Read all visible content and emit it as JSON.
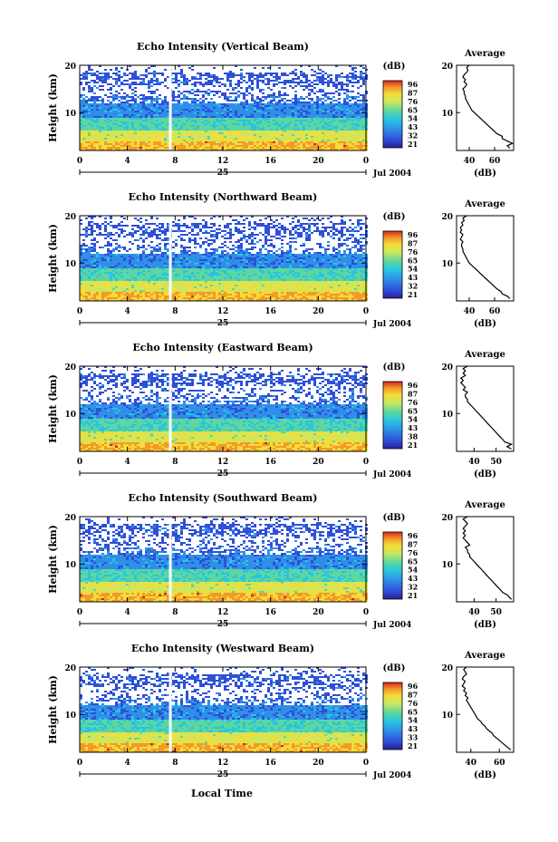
{
  "figure": {
    "xlabel_bottom": "Local Time",
    "colorbar_unit": "(dB)",
    "average_title": "Average",
    "average_xlabel": "(dB)",
    "date_label": "Jul 2004",
    "day_label": "25"
  },
  "chart_data": [
    {
      "type": "heatmap",
      "title": "Echo Intensity (Vertical Beam)",
      "ylabel": "Height (km)",
      "ylim": [
        2,
        20
      ],
      "yticks": [
        "20",
        "10"
      ],
      "xticks": [
        "0",
        "4",
        "8",
        "12",
        "16",
        "20",
        "0"
      ],
      "xlim": [
        0,
        24
      ],
      "colorbar_ticks": [
        "96",
        "87",
        "76",
        "65",
        "54",
        "43",
        "32",
        "21"
      ],
      "data_gap_at_hour": 7.6,
      "average": {
        "xticks": [
          "40",
          "60"
        ],
        "xlim": [
          30,
          75
        ],
        "yticks": [
          "20",
          "10"
        ],
        "profile": [
          [
            72,
            2.5
          ],
          [
            70,
            3
          ],
          [
            74,
            3.5
          ],
          [
            70,
            4
          ],
          [
            66,
            4.5
          ],
          [
            66,
            5
          ],
          [
            62,
            5.5
          ],
          [
            60,
            6
          ],
          [
            58,
            6.5
          ],
          [
            56,
            7
          ],
          [
            54,
            7.5
          ],
          [
            52,
            8
          ],
          [
            50,
            8.5
          ],
          [
            48,
            9
          ],
          [
            46,
            9.5
          ],
          [
            44,
            10
          ],
          [
            42,
            10.5
          ],
          [
            41,
            11
          ],
          [
            40,
            11.5
          ],
          [
            39,
            12
          ],
          [
            38,
            12.5
          ],
          [
            37,
            13
          ],
          [
            37,
            13.5
          ],
          [
            36,
            14
          ],
          [
            36,
            14.5
          ],
          [
            35,
            15
          ],
          [
            37,
            15.5
          ],
          [
            38,
            16
          ],
          [
            36,
            16.5
          ],
          [
            37,
            17
          ],
          [
            35,
            17.5
          ],
          [
            36,
            18
          ],
          [
            38,
            18.5
          ],
          [
            39,
            19
          ],
          [
            38,
            19.5
          ],
          [
            40,
            20
          ]
        ]
      }
    },
    {
      "type": "heatmap",
      "title": "Echo Intensity (Northward Beam)",
      "ylabel": "Height (km)",
      "ylim": [
        2,
        20
      ],
      "yticks": [
        "20",
        "10"
      ],
      "xticks": [
        "0",
        "4",
        "8",
        "12",
        "16",
        "20",
        "0"
      ],
      "xlim": [
        0,
        24
      ],
      "colorbar_ticks": [
        "96",
        "87",
        "76",
        "65",
        "54",
        "43",
        "32",
        "21"
      ],
      "data_gap_at_hour": 7.6,
      "average": {
        "xticks": [
          "40",
          "60"
        ],
        "xlim": [
          30,
          75
        ],
        "yticks": [
          "20",
          "10"
        ],
        "profile": [
          [
            72,
            2.5
          ],
          [
            70,
            3
          ],
          [
            66,
            3.5
          ],
          [
            65,
            4
          ],
          [
            62,
            4.5
          ],
          [
            60,
            5
          ],
          [
            58,
            5.5
          ],
          [
            56,
            6
          ],
          [
            54,
            6.5
          ],
          [
            52,
            7
          ],
          [
            50,
            7.5
          ],
          [
            48,
            8
          ],
          [
            46,
            8.5
          ],
          [
            44,
            9
          ],
          [
            42,
            9.5
          ],
          [
            40,
            10
          ],
          [
            39,
            10.5
          ],
          [
            38,
            11
          ],
          [
            37,
            11.5
          ],
          [
            36,
            12
          ],
          [
            35,
            12.5
          ],
          [
            35,
            13
          ],
          [
            34,
            13.5
          ],
          [
            34,
            14
          ],
          [
            35,
            14.5
          ],
          [
            33,
            15
          ],
          [
            34,
            15.5
          ],
          [
            35,
            16
          ],
          [
            33,
            16.5
          ],
          [
            34,
            17
          ],
          [
            33,
            17.5
          ],
          [
            35,
            18
          ],
          [
            34,
            18.5
          ],
          [
            36,
            19
          ],
          [
            35,
            19.5
          ],
          [
            38,
            20
          ]
        ]
      }
    },
    {
      "type": "heatmap",
      "title": "Echo Intensity (Eastward Beam)",
      "ylabel": "Height (km)",
      "ylim": [
        2,
        20
      ],
      "yticks": [
        "20",
        "10"
      ],
      "xticks": [
        "0",
        "4",
        "8",
        "12",
        "16",
        "20",
        "0"
      ],
      "xlim": [
        0,
        24
      ],
      "colorbar_ticks": [
        "96",
        "87",
        "76",
        "65",
        "54",
        "43",
        "38",
        "21"
      ],
      "data_gap_at_hour": 7.6,
      "average": {
        "xticks": [
          "40",
          "50"
        ],
        "xlim": [
          32,
          58
        ],
        "yticks": [
          "20",
          "10"
        ],
        "profile": [
          [
            57,
            2.5
          ],
          [
            55,
            3
          ],
          [
            57,
            3.5
          ],
          [
            54,
            4
          ],
          [
            53,
            4.5
          ],
          [
            52,
            5
          ],
          [
            51,
            5.5
          ],
          [
            50,
            6
          ],
          [
            49,
            6.5
          ],
          [
            48,
            7
          ],
          [
            47,
            7.5
          ],
          [
            46,
            8
          ],
          [
            45,
            8.5
          ],
          [
            44,
            9
          ],
          [
            43,
            9.5
          ],
          [
            42,
            10
          ],
          [
            41,
            10.5
          ],
          [
            40,
            11
          ],
          [
            39,
            11.5
          ],
          [
            38,
            12
          ],
          [
            37,
            12.5
          ],
          [
            37,
            13
          ],
          [
            36,
            13.5
          ],
          [
            36,
            14
          ],
          [
            37,
            14.5
          ],
          [
            35,
            15
          ],
          [
            36,
            15.5
          ],
          [
            35,
            16
          ],
          [
            34,
            16.5
          ],
          [
            35,
            17
          ],
          [
            34,
            17.5
          ],
          [
            36,
            18
          ],
          [
            35,
            18.5
          ],
          [
            36,
            19
          ],
          [
            35,
            19.5
          ],
          [
            37,
            20
          ]
        ]
      }
    },
    {
      "type": "heatmap",
      "title": "Echo Intensity (Southward Beam)",
      "ylabel": "Height (km)",
      "ylim": [
        2,
        20
      ],
      "yticks": [
        "20",
        "10"
      ],
      "xticks": [
        "0",
        "4",
        "8",
        "12",
        "16",
        "20",
        "0"
      ],
      "xlim": [
        0,
        24
      ],
      "colorbar_ticks": [
        "96",
        "87",
        "76",
        "65",
        "54",
        "43",
        "32",
        "21"
      ],
      "data_gap_at_hour": 7.6,
      "average": {
        "xticks": [
          "40",
          "50"
        ],
        "xlim": [
          32,
          58
        ],
        "yticks": [
          "20",
          "10"
        ],
        "profile": [
          [
            57,
            2.5
          ],
          [
            56,
            3
          ],
          [
            55,
            3.5
          ],
          [
            53,
            4
          ],
          [
            52,
            4.5
          ],
          [
            51,
            5
          ],
          [
            50,
            5.5
          ],
          [
            49,
            6
          ],
          [
            48,
            6.5
          ],
          [
            47,
            7
          ],
          [
            46,
            7.5
          ],
          [
            45,
            8
          ],
          [
            44,
            8.5
          ],
          [
            43,
            9
          ],
          [
            42,
            9.5
          ],
          [
            41,
            10
          ],
          [
            40,
            10.5
          ],
          [
            39,
            11
          ],
          [
            38,
            11.5
          ],
          [
            38,
            12
          ],
          [
            37,
            12.5
          ],
          [
            37,
            13
          ],
          [
            36,
            13.5
          ],
          [
            38,
            14
          ],
          [
            37,
            14.5
          ],
          [
            36,
            15
          ],
          [
            35,
            15.5
          ],
          [
            36,
            16
          ],
          [
            35,
            16.5
          ],
          [
            36,
            17
          ],
          [
            35,
            17.5
          ],
          [
            36,
            18
          ],
          [
            37,
            18.5
          ],
          [
            36,
            19
          ],
          [
            35,
            19.5
          ],
          [
            37,
            20
          ]
        ]
      }
    },
    {
      "type": "heatmap",
      "title": "Echo Intensity (Westward Beam)",
      "ylabel": "Height (km)",
      "ylim": [
        2,
        20
      ],
      "yticks": [
        "20",
        "10"
      ],
      "xticks": [
        "0",
        "4",
        "8",
        "12",
        "16",
        "20",
        "0"
      ],
      "xlim": [
        0,
        24
      ],
      "colorbar_ticks": [
        "96",
        "87",
        "76",
        "65",
        "54",
        "43",
        "33",
        "21"
      ],
      "data_gap_at_hour": 7.6,
      "average": {
        "xticks": [
          "40",
          "60"
        ],
        "xlim": [
          30,
          70
        ],
        "yticks": [
          "20",
          "10"
        ],
        "profile": [
          [
            68,
            2.5
          ],
          [
            66,
            3
          ],
          [
            64,
            3.5
          ],
          [
            62,
            4
          ],
          [
            60,
            4.5
          ],
          [
            58,
            5
          ],
          [
            56,
            5.5
          ],
          [
            55,
            6
          ],
          [
            53,
            6.5
          ],
          [
            51,
            7
          ],
          [
            50,
            7.5
          ],
          [
            48,
            8
          ],
          [
            47,
            8.5
          ],
          [
            45,
            9
          ],
          [
            44,
            9.5
          ],
          [
            43,
            10
          ],
          [
            42,
            10.5
          ],
          [
            41,
            11
          ],
          [
            40,
            11.5
          ],
          [
            39,
            12
          ],
          [
            38,
            12.5
          ],
          [
            37,
            13
          ],
          [
            38,
            13.5
          ],
          [
            36,
            14
          ],
          [
            37,
            14.5
          ],
          [
            35,
            15
          ],
          [
            36,
            15.5
          ],
          [
            34,
            16
          ],
          [
            35,
            16.5
          ],
          [
            36,
            17
          ],
          [
            34,
            17.5
          ],
          [
            35,
            18
          ],
          [
            37,
            18.5
          ],
          [
            36,
            19
          ],
          [
            35,
            19.5
          ],
          [
            37,
            20
          ]
        ]
      }
    }
  ]
}
